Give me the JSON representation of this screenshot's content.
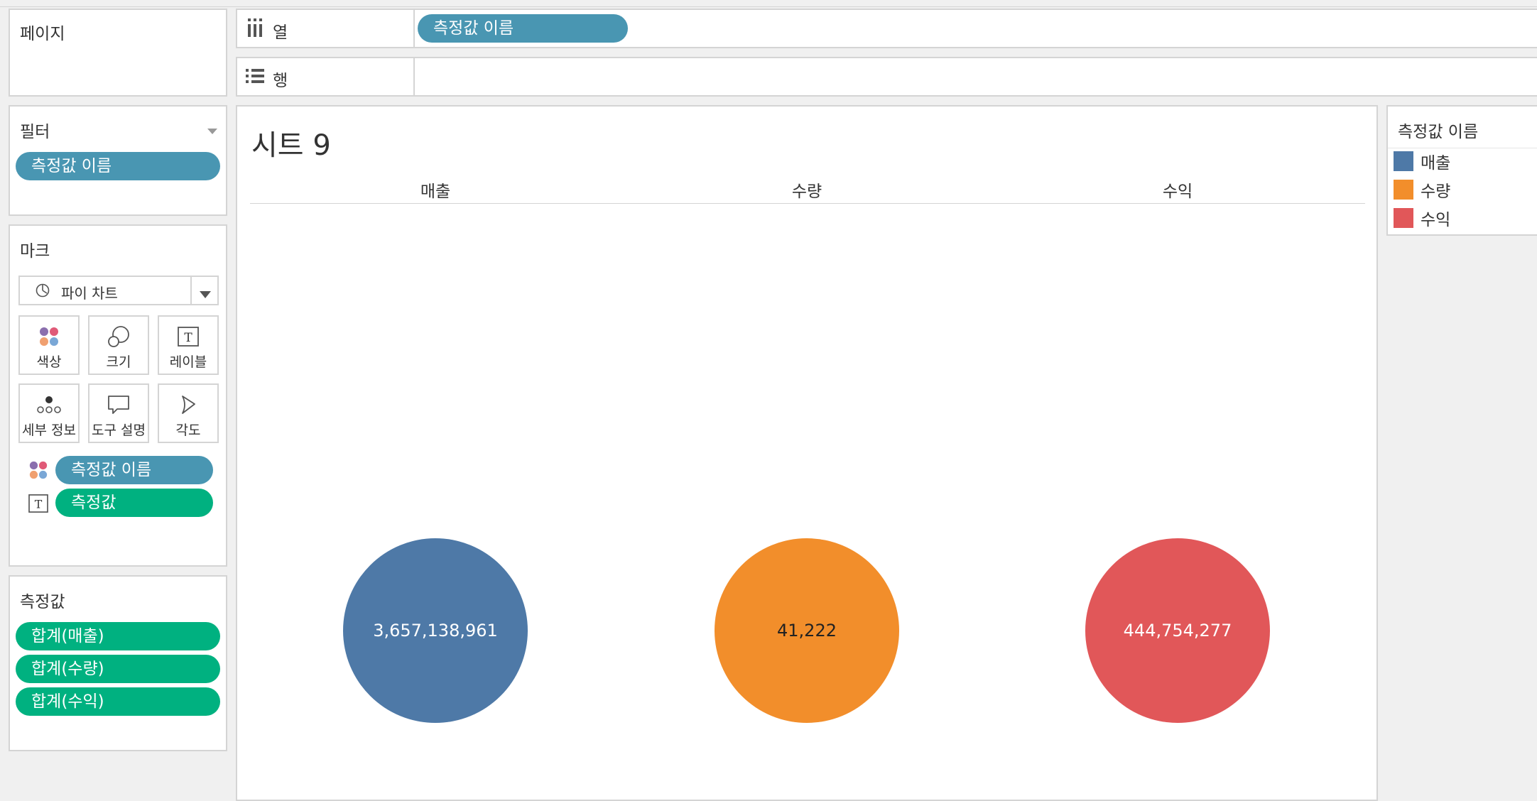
{
  "pages_card": {
    "title": "페이지"
  },
  "columns_shelf": {
    "label": "열",
    "pill": "측정값 이름"
  },
  "rows_shelf": {
    "label": "행"
  },
  "filters_card": {
    "title": "필터",
    "pill": "측정값 이름"
  },
  "marks_card": {
    "title": "마크",
    "mark_type": "파이 차트",
    "buttons": [
      "색상",
      "크기",
      "레이블",
      "세부 정보",
      "도구 설명",
      "각도"
    ],
    "color_pill": "측정값 이름",
    "label_pill": "측정값"
  },
  "measure_values_card": {
    "title": "측정값",
    "pills": [
      "합계(매출)",
      "합계(수량)",
      "합계(수익)"
    ]
  },
  "sheet": {
    "title": "시트 9"
  },
  "legend": {
    "title": "측정값 이름",
    "items": [
      {
        "label": "매출",
        "color": "#4e79a7"
      },
      {
        "label": "수량",
        "color": "#f28e2b"
      },
      {
        "label": "수익",
        "color": "#e15759"
      }
    ]
  },
  "chart_data": {
    "type": "pie",
    "categories": [
      "매출",
      "수량",
      "수익"
    ],
    "values": [
      3657138961,
      41222,
      444754277
    ],
    "value_labels": [
      "3,657,138,961",
      "41,222",
      "444,754,277"
    ],
    "colors": [
      "#4e79a7",
      "#f28e2b",
      "#e15759"
    ]
  }
}
